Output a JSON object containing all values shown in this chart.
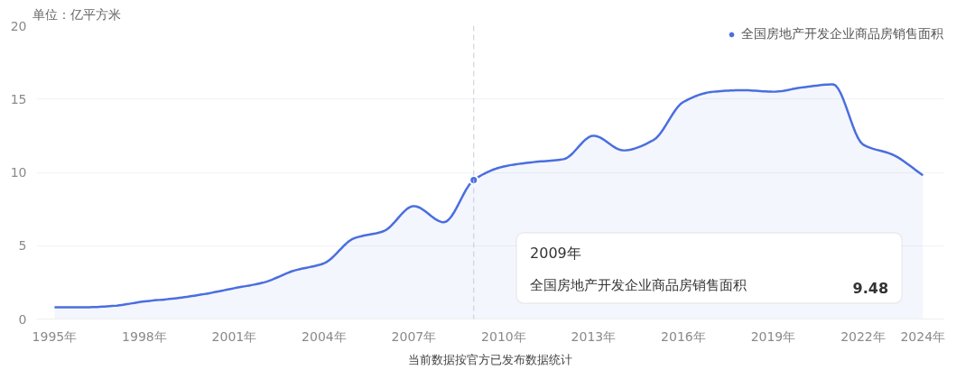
{
  "chart_data": {
    "type": "area",
    "ylabel": "单位：亿平方米",
    "x": [
      1995,
      1996,
      1997,
      1998,
      1999,
      2000,
      2001,
      2002,
      2003,
      2004,
      2005,
      2006,
      2007,
      2008,
      2009,
      2010,
      2011,
      2012,
      2013,
      2014,
      2015,
      2016,
      2017,
      2018,
      2019,
      2020,
      2021,
      2022,
      2023,
      2024
    ],
    "series": [
      {
        "name": "全国房地产开发企业商品房销售面积",
        "color": "#4a6ee0",
        "values": [
          0.8,
          0.8,
          0.9,
          1.2,
          1.4,
          1.7,
          2.1,
          2.5,
          3.3,
          3.8,
          5.5,
          6.0,
          7.7,
          6.6,
          9.48,
          10.4,
          10.7,
          10.9,
          12.5,
          11.5,
          12.2,
          14.8,
          15.5,
          15.6,
          15.5,
          15.8,
          16.0,
          11.9,
          11.2,
          9.8
        ]
      }
    ],
    "xlim": [
      1994.4,
      2024.7
    ],
    "xticks": [
      {
        "value": 1995,
        "label": "1995年"
      },
      {
        "value": 1998,
        "label": "1998年"
      },
      {
        "value": 2001,
        "label": "2001年"
      },
      {
        "value": 2004,
        "label": "2004年"
      },
      {
        "value": 2007,
        "label": "2007年"
      },
      {
        "value": 2010,
        "label": "2010年"
      },
      {
        "value": 2013,
        "label": "2013年"
      },
      {
        "value": 2016,
        "label": "2016年"
      },
      {
        "value": 2019,
        "label": "2019年"
      },
      {
        "value": 2022,
        "label": "2022年"
      },
      {
        "value": 2024,
        "label": "2024年"
      }
    ],
    "ylim": [
      0,
      20
    ],
    "yticks": [
      0,
      5,
      10,
      15,
      20
    ],
    "grid": "y",
    "legend": "top right",
    "ref_lines": [
      {
        "axis": "x",
        "value": 2009,
        "color": "#c5cbd8",
        "line_style": "dashed"
      }
    ],
    "annotations": [
      "2009年",
      "9.48",
      "当前数据按官方已发布数据统计"
    ]
  }
}
